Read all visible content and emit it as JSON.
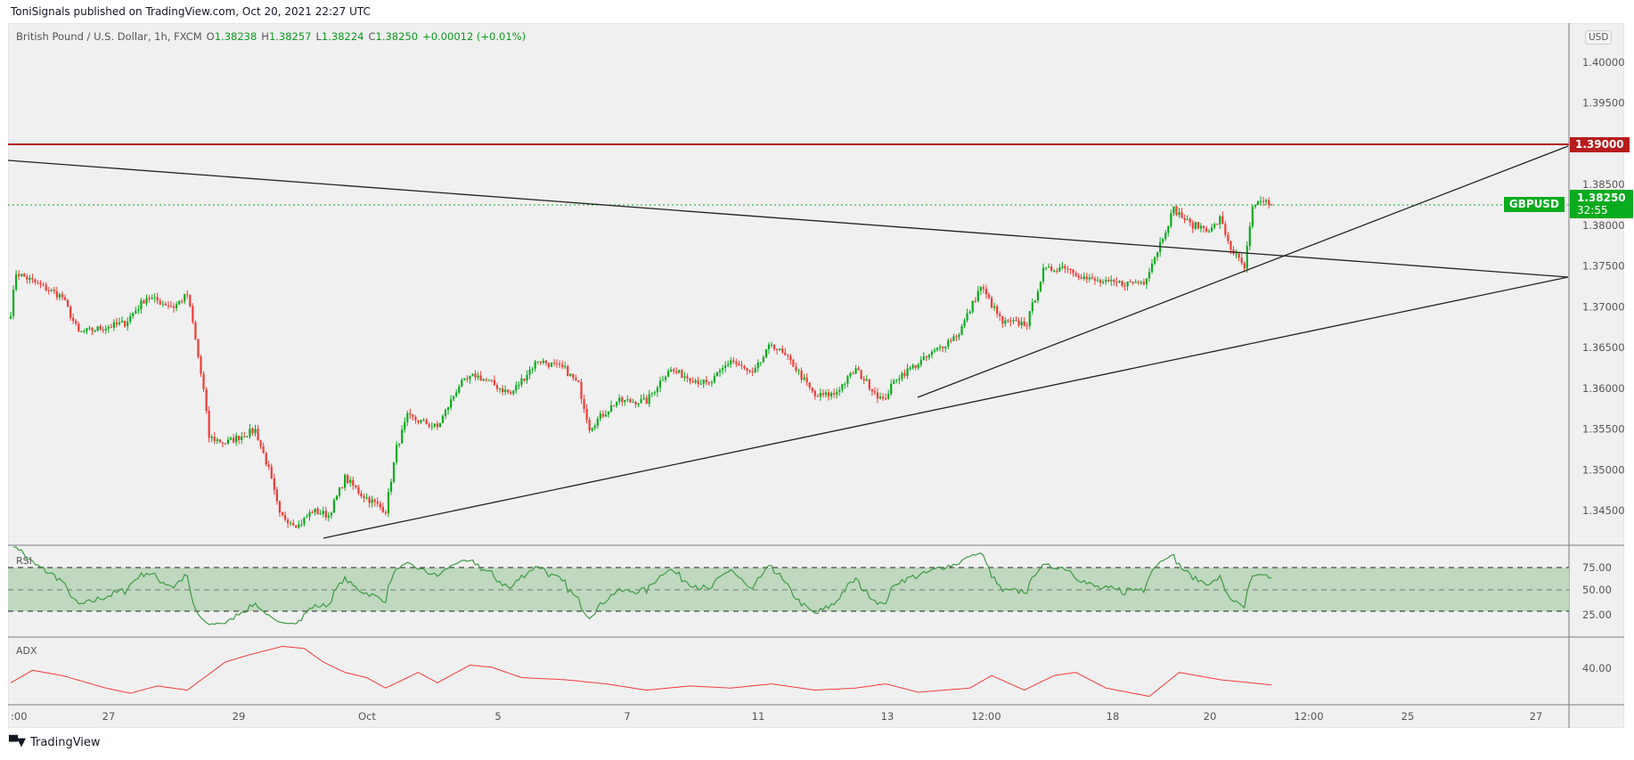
{
  "publisher_line": "ToniSignals published on TradingView.com, Oct 20, 2021 22:27 UTC",
  "legend": {
    "symbol_name": "British Pound / U.S. Dollar, 1h, FXCM",
    "o_label": "O",
    "o": "1.38238",
    "h_label": "H",
    "h": "1.38257",
    "l_label": "L",
    "l": "1.38224",
    "c_label": "C",
    "c": "1.38250",
    "change": "+0.00012 (+0.01%)"
  },
  "currency_button": "USD",
  "price_axis": [
    "1.40000",
    "1.39500",
    "1.38500",
    "1.38000",
    "1.37500",
    "1.37000",
    "1.36500",
    "1.36000",
    "1.35500",
    "1.35000",
    "1.34500"
  ],
  "resistance_label": "1.39000",
  "symbol_tag": "GBPUSD",
  "last_price": "1.38250",
  "countdown": "32:55",
  "rsi": {
    "title": "RSI",
    "levels": [
      "75.00",
      "50.00",
      "25.00"
    ]
  },
  "adx": {
    "title": "ADX",
    "levels": [
      "40.00"
    ]
  },
  "time_axis": [
    ":00",
    "27",
    "29",
    "Oct",
    "5",
    "7",
    "11",
    "13",
    "12:00",
    "18",
    "20",
    "12:00",
    "25",
    "27"
  ],
  "brand": "TradingView",
  "colors": {
    "up": "#0aab1e",
    "down": "#f23b36",
    "resistance": "#b71c1c",
    "rsi_line": "#3f9a45",
    "rsi_band": "#bfd8bf",
    "adx_line": "#f03a3a"
  },
  "chart_data": {
    "type": "candlestick",
    "title": "British Pound / U.S. Dollar, 1h, FXCM",
    "ylim": [
      1.341,
      1.4035
    ],
    "close_waypoints_bar_price": [
      [
        0,
        1.3693
      ],
      [
        2,
        1.3742
      ],
      [
        19,
        1.3712
      ],
      [
        25,
        1.3668
      ],
      [
        42,
        1.368
      ],
      [
        50,
        1.3712
      ],
      [
        60,
        1.37
      ],
      [
        65,
        1.3715
      ],
      [
        67,
        1.368
      ],
      [
        71,
        1.3597
      ],
      [
        73,
        1.354
      ],
      [
        79,
        1.3533
      ],
      [
        90,
        1.3549
      ],
      [
        95,
        1.35
      ],
      [
        99,
        1.3444
      ],
      [
        106,
        1.3432
      ],
      [
        111,
        1.345
      ],
      [
        117,
        1.3444
      ],
      [
        123,
        1.349
      ],
      [
        129,
        1.347
      ],
      [
        138,
        1.345
      ],
      [
        142,
        1.3527
      ],
      [
        146,
        1.3565
      ],
      [
        157,
        1.3552
      ],
      [
        165,
        1.3604
      ],
      [
        171,
        1.3616
      ],
      [
        177,
        1.3606
      ],
      [
        184,
        1.3593
      ],
      [
        194,
        1.3635
      ],
      [
        204,
        1.3623
      ],
      [
        209,
        1.3604
      ],
      [
        213,
        1.3552
      ],
      [
        223,
        1.3584
      ],
      [
        234,
        1.3584
      ],
      [
        242,
        1.3623
      ],
      [
        257,
        1.3604
      ],
      [
        265,
        1.3635
      ],
      [
        273,
        1.3616
      ],
      [
        280,
        1.3655
      ],
      [
        288,
        1.3629
      ],
      [
        296,
        1.359
      ],
      [
        303,
        1.3593
      ],
      [
        311,
        1.3623
      ],
      [
        321,
        1.3584
      ],
      [
        326,
        1.3613
      ],
      [
        336,
        1.3635
      ],
      [
        349,
        1.3668
      ],
      [
        357,
        1.3725
      ],
      [
        365,
        1.368
      ],
      [
        374,
        1.368
      ],
      [
        380,
        1.3744
      ],
      [
        388,
        1.375
      ],
      [
        396,
        1.3734
      ],
      [
        403,
        1.3729
      ],
      [
        411,
        1.3729
      ],
      [
        417,
        1.3731
      ],
      [
        422,
        1.377
      ],
      [
        428,
        1.382
      ],
      [
        434,
        1.3801
      ],
      [
        442,
        1.3795
      ],
      [
        445,
        1.3808
      ],
      [
        449,
        1.3772
      ],
      [
        454,
        1.3747
      ],
      [
        457,
        1.382
      ],
      [
        461,
        1.3831
      ],
      [
        464,
        1.3825
      ]
    ],
    "horizontal_levels": [
      {
        "price": 1.39,
        "label": "1.39000"
      },
      {
        "price": 1.3825,
        "label": "last"
      }
    ],
    "rsi_levels": [
      75,
      50,
      25
    ],
    "adx_waypoints_bar_value": [
      [
        0,
        31.6
      ],
      [
        8,
        38.8
      ],
      [
        19,
        35.8
      ],
      [
        35,
        28.6
      ],
      [
        44,
        25.6
      ],
      [
        54,
        29.8
      ],
      [
        65,
        27.4
      ],
      [
        79,
        43.6
      ],
      [
        88,
        47.8
      ],
      [
        100,
        52.6
      ],
      [
        108,
        51.4
      ],
      [
        115,
        43.6
      ],
      [
        123,
        37.6
      ],
      [
        131,
        34.6
      ],
      [
        138,
        28.6
      ],
      [
        150,
        37.6
      ],
      [
        157,
        31.6
      ],
      [
        169,
        41.8
      ],
      [
        177,
        40.6
      ],
      [
        188,
        34.6
      ],
      [
        204,
        33.4
      ],
      [
        219,
        31
      ],
      [
        234,
        27.4
      ],
      [
        250,
        29.8
      ],
      [
        265,
        28.6
      ],
      [
        280,
        31
      ],
      [
        296,
        27.4
      ],
      [
        311,
        28.6
      ],
      [
        322,
        31
      ],
      [
        334,
        26.2
      ],
      [
        353,
        28.6
      ],
      [
        361,
        35.8
      ],
      [
        373,
        27.4
      ],
      [
        384,
        35.8
      ],
      [
        392,
        37.6
      ],
      [
        403,
        28.6
      ],
      [
        419,
        23.8
      ],
      [
        430,
        37.6
      ],
      [
        445,
        33.4
      ],
      [
        464,
        30.4
      ]
    ]
  }
}
